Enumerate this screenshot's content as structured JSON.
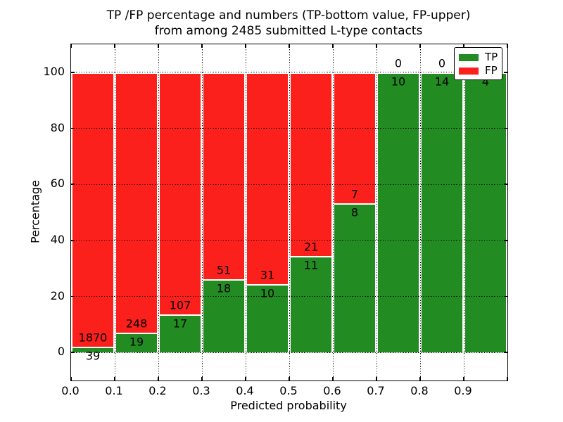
{
  "chart_data": {
    "type": "bar",
    "stacked": true,
    "title_line1": "TP /FP percentage and numbers (TP-bottom value, FP-upper)",
    "title_line2": "from among 2485 submitted L-type contacts",
    "xlabel": "Predicted probability",
    "ylabel": "Percentage",
    "total_submitted_contacts": 2485,
    "x_tick_labels": [
      "0.0",
      "0.1",
      "0.2",
      "0.3",
      "0.4",
      "0.5",
      "0.6",
      "0.7",
      "0.8",
      "0.9"
    ],
    "y_tick_labels": [
      "0",
      "20",
      "40",
      "60",
      "80",
      "100"
    ],
    "y_ticks": [
      0,
      20,
      40,
      60,
      80,
      100
    ],
    "ylim": [
      -10,
      110
    ],
    "xlim": [
      0.0,
      1.0
    ],
    "grid": "dotted",
    "bar_edge_color": "#ffffff",
    "legend": {
      "position": "upper right",
      "entries": [
        "TP",
        "FP"
      ]
    },
    "series": [
      {
        "name": "TP",
        "color": "#228b22"
      },
      {
        "name": "FP",
        "color": "#fc201c"
      }
    ],
    "bins": [
      {
        "x_range": [
          0.0,
          0.1
        ],
        "tp_count": 39,
        "fp_count": 1870,
        "tp_pct": 2.0,
        "fp_pct": 98.0
      },
      {
        "x_range": [
          0.1,
          0.2
        ],
        "tp_count": 19,
        "fp_count": 248,
        "tp_pct": 7.1,
        "fp_pct": 92.9
      },
      {
        "x_range": [
          0.2,
          0.3
        ],
        "tp_count": 17,
        "fp_count": 107,
        "tp_pct": 13.7,
        "fp_pct": 86.3
      },
      {
        "x_range": [
          0.3,
          0.4
        ],
        "tp_count": 18,
        "fp_count": 51,
        "tp_pct": 26.1,
        "fp_pct": 73.9
      },
      {
        "x_range": [
          0.4,
          0.5
        ],
        "tp_count": 10,
        "fp_count": 31,
        "tp_pct": 24.4,
        "fp_pct": 75.6
      },
      {
        "x_range": [
          0.5,
          0.6
        ],
        "tp_count": 11,
        "fp_count": 21,
        "tp_pct": 34.4,
        "fp_pct": 65.6
      },
      {
        "x_range": [
          0.6,
          0.7
        ],
        "tp_count": 8,
        "fp_count": 7,
        "tp_pct": 53.3,
        "fp_pct": 46.7
      },
      {
        "x_range": [
          0.7,
          0.8
        ],
        "tp_count": 10,
        "fp_count": 0,
        "tp_pct": 100.0,
        "fp_pct": 0.0
      },
      {
        "x_range": [
          0.8,
          0.9
        ],
        "tp_count": 14,
        "fp_count": 0,
        "tp_pct": 100.0,
        "fp_pct": 0.0
      },
      {
        "x_range": [
          0.9,
          1.0
        ],
        "tp_count": 4,
        "fp_count": 0,
        "tp_pct": 100.0,
        "fp_pct": 0.0
      }
    ]
  }
}
